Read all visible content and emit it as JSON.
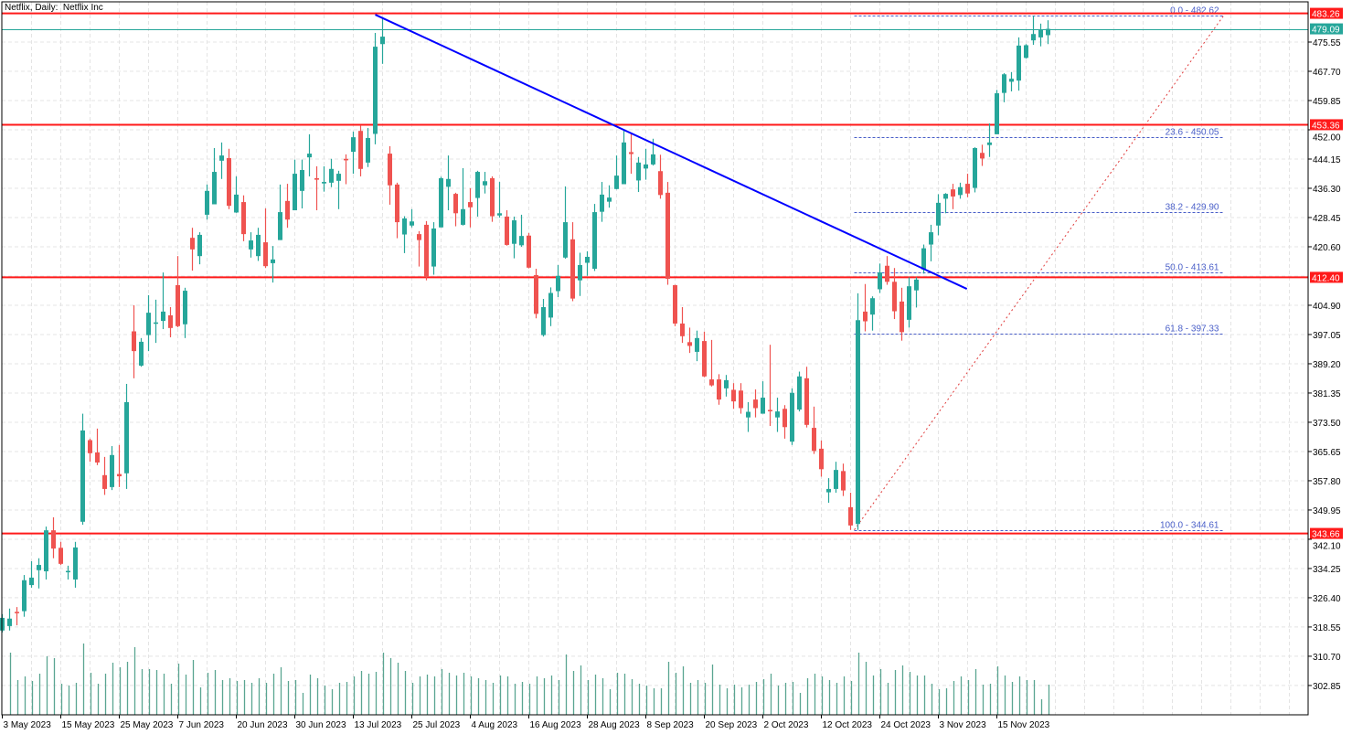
{
  "header": {
    "title": "Netflix, Daily:  Netflix Inc"
  },
  "colors": {
    "bull": "#26a69a",
    "bear": "#ef5350",
    "level": "#ff1a1a",
    "trend": "#0000ff",
    "fib": "#4a5fc8",
    "fib_diag": "#e03c3c",
    "volume": "#5aa592",
    "grid": "#e4e4e4"
  },
  "chart_data": {
    "type": "candlestick",
    "title": "Netflix, Daily:  Netflix Inc",
    "ylim": [
      298.0,
      486.0
    ],
    "y_ticks": [
      "475.55",
      "467.70",
      "459.85",
      "452.00",
      "444.15",
      "436.30",
      "428.45",
      "420.60",
      "404.90",
      "397.05",
      "389.20",
      "381.35",
      "373.50",
      "365.65",
      "357.80",
      "349.95",
      "342.10",
      "334.25",
      "326.40",
      "318.55",
      "310.70",
      "302.85"
    ],
    "x_ticks": [
      {
        "bar": 0,
        "label": "3 May 2023"
      },
      {
        "bar": 8,
        "label": "15 May 2023"
      },
      {
        "bar": 16,
        "label": "25 May 2023"
      },
      {
        "bar": 24,
        "label": "7 Jun 2023"
      },
      {
        "bar": 32,
        "label": "20 Jun 2023"
      },
      {
        "bar": 40,
        "label": "30 Jun 2023"
      },
      {
        "bar": 48,
        "label": "13 Jul 2023"
      },
      {
        "bar": 56,
        "label": "25 Jul 2023"
      },
      {
        "bar": 64,
        "label": "4 Aug 2023"
      },
      {
        "bar": 72,
        "label": "16 Aug 2023"
      },
      {
        "bar": 80,
        "label": "28 Aug 2023"
      },
      {
        "bar": 88,
        "label": "8 Sep 2023"
      },
      {
        "bar": 96,
        "label": "20 Sep 2023"
      },
      {
        "bar": 104,
        "label": "2 Oct 2023"
      },
      {
        "bar": 112,
        "label": "12 Oct 2023"
      },
      {
        "bar": 120,
        "label": "24 Oct 2023"
      },
      {
        "bar": 128,
        "label": "3 Nov 2023"
      },
      {
        "bar": 136,
        "label": "15 Nov 2023"
      }
    ],
    "ohlc": [
      [
        317.6,
        322.0,
        317.1,
        321.0
      ],
      [
        318.8,
        323.5,
        317.6,
        320.8
      ],
      [
        322.6,
        323.9,
        319.0,
        322.3
      ],
      [
        322.8,
        332.5,
        321.3,
        331.1
      ],
      [
        329.8,
        336.2,
        329.1,
        331.8
      ],
      [
        333.8,
        337.0,
        328.9,
        335.2
      ],
      [
        333.5,
        345.5,
        331.3,
        344.5
      ],
      [
        344.5,
        348.0,
        337.0,
        339.6
      ],
      [
        339.8,
        341.4,
        335.2,
        335.5
      ],
      [
        333.3,
        335.0,
        331.3,
        333.6
      ],
      [
        331.3,
        341.4,
        329.1,
        339.9
      ],
      [
        346.8,
        375.8,
        346.0,
        371.3
      ],
      [
        368.7,
        369.1,
        362.9,
        365.2
      ],
      [
        365.4,
        371.8,
        362.0,
        362.7
      ],
      [
        359.3,
        364.2,
        354.0,
        355.6
      ],
      [
        356.1,
        367.1,
        355.3,
        364.7
      ],
      [
        359.6,
        367.4,
        356.1,
        359.0
      ],
      [
        359.8,
        383.8,
        355.6,
        378.9
      ],
      [
        397.9,
        404.9,
        385.3,
        392.6
      ],
      [
        388.7,
        396.1,
        388.4,
        395.1
      ],
      [
        396.9,
        407.6,
        392.6,
        402.9
      ],
      [
        400.0,
        406.4,
        394.8,
        400.3
      ],
      [
        400.7,
        413.7,
        398.5,
        403.2
      ],
      [
        402.2,
        404.4,
        396.3,
        398.8
      ],
      [
        410.3,
        418.1,
        399.0,
        399.3
      ],
      [
        399.8,
        409.6,
        396.1,
        408.8
      ],
      [
        423.0,
        425.7,
        414.2,
        419.9
      ],
      [
        418.1,
        424.5,
        415.9,
        423.8
      ],
      [
        429.2,
        437.3,
        427.9,
        435.6
      ],
      [
        432.0,
        447.1,
        432.0,
        440.7
      ],
      [
        443.7,
        448.6,
        438.8,
        445.1
      ],
      [
        444.4,
        446.9,
        430.7,
        431.6
      ],
      [
        429.8,
        439.5,
        429.7,
        434.6
      ],
      [
        432.6,
        434.4,
        422.1,
        424.0
      ],
      [
        419.9,
        424.5,
        417.7,
        422.3
      ],
      [
        418.1,
        425.7,
        416.8,
        423.8
      ],
      [
        421.8,
        430.9,
        414.9,
        415.4
      ],
      [
        416.2,
        420.8,
        411.0,
        417.2
      ],
      [
        422.4,
        437.3,
        422.4,
        429.9
      ],
      [
        432.9,
        437.5,
        425.7,
        427.9
      ],
      [
        430.4,
        444.0,
        430.4,
        440.2
      ],
      [
        435.6,
        444.0,
        430.9,
        441.2
      ],
      [
        444.6,
        450.8,
        439.5,
        445.6
      ],
      [
        439.0,
        442.2,
        430.4,
        438.6
      ],
      [
        437.6,
        442.2,
        435.4,
        438.0
      ],
      [
        437.8,
        444.2,
        436.6,
        441.5
      ],
      [
        438.3,
        441.0,
        430.7,
        440.2
      ],
      [
        444.2,
        445.4,
        437.4,
        443.8
      ],
      [
        446.1,
        451.5,
        440.2,
        450.0
      ],
      [
        451.7,
        453.2,
        439.5,
        441.5
      ],
      [
        443.2,
        452.5,
        442.0,
        449.8
      ],
      [
        450.9,
        478.0,
        448.1,
        474.3
      ],
      [
        475.0,
        482.2,
        469.7,
        477.0
      ],
      [
        445.6,
        447.6,
        431.9,
        437.1
      ],
      [
        437.3,
        437.8,
        422.9,
        427.2
      ],
      [
        423.9,
        428.8,
        418.9,
        428.2
      ],
      [
        426.3,
        430.7,
        425.8,
        427.4
      ],
      [
        424.0,
        424.8,
        415.3,
        422.4
      ],
      [
        426.5,
        427.5,
        411.6,
        412.5
      ],
      [
        415.3,
        427.2,
        413.1,
        425.5
      ],
      [
        425.8,
        439.4,
        425.8,
        439.0
      ],
      [
        436.7,
        445.1,
        430.4,
        438.8
      ],
      [
        434.8,
        435.1,
        426.1,
        429.6
      ],
      [
        426.5,
        441.7,
        426.3,
        430.7
      ],
      [
        432.6,
        436.3,
        425.8,
        431.2
      ],
      [
        433.7,
        441.0,
        428.7,
        440.7
      ],
      [
        437.1,
        440.7,
        434.9,
        438.2
      ],
      [
        439.0,
        439.5,
        427.3,
        428.8
      ],
      [
        429.0,
        438.0,
        428.4,
        429.6
      ],
      [
        428.7,
        430.4,
        420.9,
        421.1
      ],
      [
        421.4,
        428.7,
        417.5,
        427.7
      ],
      [
        421.0,
        429.2,
        420.6,
        423.5
      ],
      [
        423.6,
        424.3,
        414.8,
        415.0
      ],
      [
        413.0,
        414.7,
        401.4,
        402.6
      ],
      [
        396.9,
        406.6,
        396.5,
        404.4
      ],
      [
        401.6,
        409.7,
        399.3,
        408.2
      ],
      [
        408.7,
        415.7,
        407.1,
        412.8
      ],
      [
        417.7,
        436.8,
        417.4,
        427.2
      ],
      [
        422.6,
        427.2,
        406.0,
        406.7
      ],
      [
        411.6,
        419.0,
        407.4,
        415.7
      ],
      [
        416.3,
        419.4,
        412.8,
        417.9
      ],
      [
        414.7,
        432.1,
        414.1,
        429.9
      ],
      [
        430.0,
        438.0,
        427.3,
        434.6
      ],
      [
        432.7,
        437.1,
        431.1,
        433.8
      ],
      [
        436.1,
        445.1,
        436.0,
        439.7
      ],
      [
        437.4,
        452.0,
        437.4,
        448.6
      ],
      [
        446.0,
        451.0,
        440.2,
        445.5
      ],
      [
        438.4,
        444.7,
        435.3,
        443.2
      ],
      [
        441.6,
        446.9,
        438.6,
        442.7
      ],
      [
        442.7,
        449.6,
        442.4,
        445.4
      ],
      [
        440.9,
        445.3,
        433.5,
        434.5
      ],
      [
        435.1,
        438.0,
        410.4,
        412.0
      ],
      [
        410.3,
        410.4,
        399.3,
        400.0
      ],
      [
        400.0,
        404.4,
        394.8,
        396.6
      ],
      [
        395.0,
        398.9,
        392.1,
        394.0
      ],
      [
        392.4,
        398.1,
        389.9,
        396.1
      ],
      [
        395.3,
        397.8,
        385.6,
        385.8
      ],
      [
        385.0,
        395.6,
        383.1,
        383.4
      ],
      [
        385.0,
        386.4,
        378.2,
        379.6
      ],
      [
        382.6,
        386.2,
        380.4,
        384.8
      ],
      [
        382.2,
        384.0,
        377.1,
        379.1
      ],
      [
        382.0,
        384.0,
        375.8,
        377.3
      ],
      [
        374.8,
        378.9,
        370.9,
        376.3
      ],
      [
        379.6,
        382.3,
        374.8,
        377.3
      ],
      [
        375.8,
        384.5,
        375.8,
        380.1
      ],
      [
        376.8,
        394.3,
        372.5,
        376.6
      ],
      [
        374.8,
        380.1,
        370.9,
        376.4
      ],
      [
        377.1,
        378.1,
        369.1,
        372.2
      ],
      [
        368.3,
        382.6,
        367.4,
        381.4
      ],
      [
        376.9,
        387.1,
        376.4,
        385.8
      ],
      [
        385.3,
        388.4,
        372.1,
        372.8
      ],
      [
        372.0,
        377.7,
        365.0,
        365.8
      ],
      [
        366.4,
        368.6,
        358.9,
        360.9
      ],
      [
        354.7,
        358.5,
        351.9,
        355.6
      ],
      [
        355.6,
        362.9,
        354.6,
        360.7
      ],
      [
        360.4,
        362.4,
        353.7,
        355.2
      ],
      [
        350.7,
        354.6,
        344.6,
        345.8
      ],
      [
        346.2,
        408.1,
        344.61,
        400.9
      ],
      [
        403.2,
        410.6,
        397.9,
        400.6
      ],
      [
        402.4,
        407.3,
        398.1,
        406.8
      ],
      [
        409.2,
        416.1,
        408.2,
        413.7
      ],
      [
        415.5,
        418.1,
        410.4,
        411.2
      ],
      [
        411.2,
        414.9,
        401.2,
        403.3
      ],
      [
        405.9,
        409.6,
        395.4,
        397.7
      ],
      [
        401.0,
        412.4,
        398.9,
        410.0
      ],
      [
        408.9,
        412.4,
        404.3,
        411.8
      ],
      [
        414.5,
        421.2,
        413.4,
        420.2
      ],
      [
        421.2,
        426.5,
        416.7,
        424.5
      ],
      [
        426.3,
        434.7,
        423.7,
        432.4
      ],
      [
        433.5,
        435.0,
        429.6,
        434.8
      ],
      [
        436.0,
        437.5,
        430.7,
        434.1
      ],
      [
        434.5,
        437.8,
        433.5,
        436.6
      ],
      [
        437.5,
        440.2,
        433.9,
        434.9
      ],
      [
        436.4,
        447.3,
        435.2,
        447.1
      ],
      [
        445.8,
        448.0,
        442.3,
        444.3
      ],
      [
        447.9,
        453.7,
        444.7,
        448.6
      ],
      [
        450.8,
        462.7,
        450.8,
        461.8
      ],
      [
        461.9,
        467.2,
        459.4,
        466.9
      ],
      [
        464.9,
        467.5,
        462.3,
        465.7
      ],
      [
        465.2,
        476.8,
        462.5,
        474.6
      ],
      [
        471.3,
        475.0,
        471.1,
        474.7
      ],
      [
        476.0,
        482.6,
        474.8,
        477.7
      ],
      [
        476.8,
        480.5,
        474.4,
        479.0
      ],
      [
        477.4,
        481.4,
        475.0,
        479.09
      ]
    ],
    "volume_relative": [
      null,
      204,
      114,
      126,
      111,
      135,
      192,
      186,
      102,
      96,
      105,
      234,
      138,
      102,
      135,
      171,
      156,
      174,
      222,
      150,
      150,
      147,
      135,
      102,
      168,
      132,
      180,
      90,
      138,
      147,
      114,
      120,
      111,
      114,
      105,
      120,
      105,
      135,
      156,
      111,
      114,
      72,
      132,
      120,
      96,
      84,
      105,
      108,
      126,
      144,
      135,
      141,
      204,
      186,
      171,
      144,
      105,
      126,
      132,
      126,
      150,
      138,
      129,
      138,
      126,
      120,
      114,
      105,
      129,
      126,
      102,
      108,
      102,
      126,
      120,
      129,
      114,
      198,
      144,
      162,
      114,
      132,
      120,
      84,
      138,
      135,
      117,
      102,
      96,
      87,
      87,
      174,
      138,
      159,
      105,
      114,
      105,
      165,
      99,
      87,
      99,
      90,
      99,
      108,
      117,
      135,
      96,
      105,
      108,
      72,
      120,
      135,
      126,
      114,
      105,
      126,
      111,
      204,
      174,
      129,
      150,
      105,
      147,
      162,
      141,
      129,
      129,
      102,
      84,
      87,
      111,
      126,
      114,
      150,
      99,
      102,
      159,
      129,
      108,
      126,
      114,
      114,
      51,
      99
    ],
    "levels": [
      {
        "price": 483.26,
        "label": "483.26"
      },
      {
        "price": 453.36,
        "label": "453.36"
      },
      {
        "price": 412.4,
        "label": "412.40"
      },
      {
        "price": 343.66,
        "label": "343.66"
      }
    ],
    "current_price": {
      "price": 479.09,
      "label": "479.09"
    },
    "trendline": {
      "from": {
        "bar": 51,
        "price": 482.9
      },
      "to": {
        "bar": 131.9,
        "price": 409.3
      }
    },
    "fibonacci": {
      "from": {
        "bar": 116.5,
        "price": 344.61
      },
      "to": {
        "bar": 167,
        "price": 482.62
      },
      "levels": [
        {
          "ratio": 0.0,
          "price": 482.62,
          "label": "0.0 - 482.62"
        },
        {
          "ratio": 23.6,
          "price": 450.05,
          "label": "23.6 - 450.05"
        },
        {
          "ratio": 38.2,
          "price": 429.9,
          "label": "38.2 - 429.90"
        },
        {
          "ratio": 50.0,
          "price": 413.61,
          "label": "50.0 - 413.61"
        },
        {
          "ratio": 61.8,
          "price": 397.33,
          "label": "61.8 - 397.33"
        },
        {
          "ratio": 100.0,
          "price": 344.61,
          "label": "100.0 - 344.61"
        }
      ]
    },
    "grid": true
  }
}
